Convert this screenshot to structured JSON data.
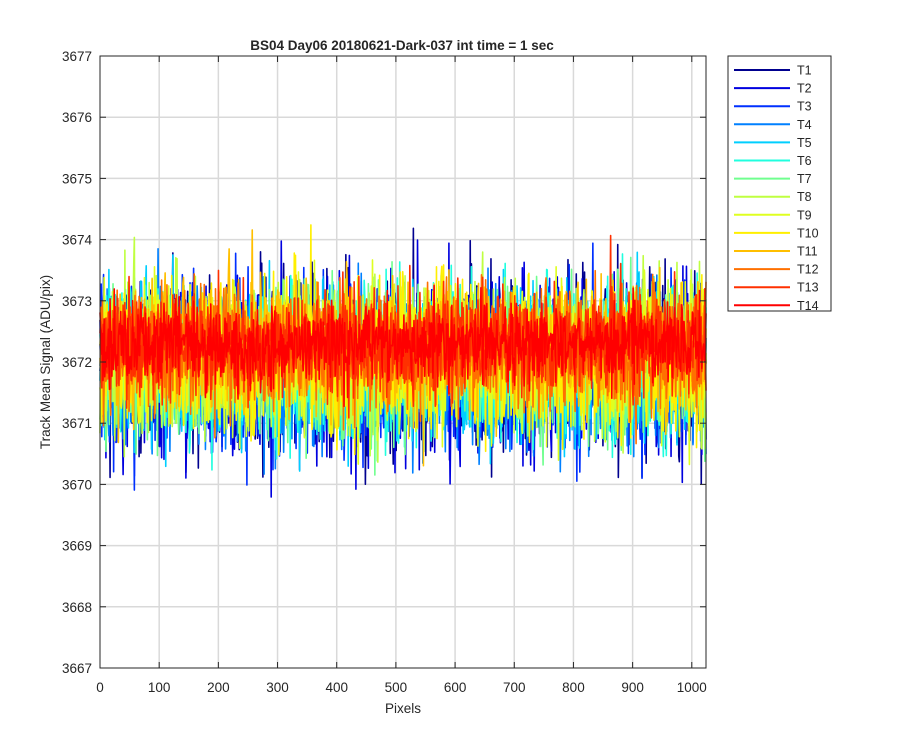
{
  "chart_data": {
    "type": "line",
    "title": "BS04 Day06 20180621-Dark-037 int time = 1 sec",
    "xlabel": "Pixels",
    "ylabel": "Track Mean Signal (ADU/pix)",
    "xlim": [
      0,
      1024
    ],
    "ylim": [
      3667,
      3677
    ],
    "xticks": [
      0,
      100,
      200,
      300,
      400,
      500,
      600,
      700,
      800,
      900,
      1000
    ],
    "yticks": [
      3667,
      3668,
      3669,
      3670,
      3671,
      3672,
      3673,
      3674,
      3675,
      3676,
      3677
    ],
    "grid": true,
    "legend_position": "outside-top-right",
    "n_points_per_series": 1024,
    "series": [
      {
        "name": "T1",
        "color": "#00008f",
        "center": 3671.9,
        "spread": 2.3
      },
      {
        "name": "T2",
        "color": "#0000df",
        "center": 3671.9,
        "spread": 2.2
      },
      {
        "name": "T3",
        "color": "#0030ff",
        "center": 3671.9,
        "spread": 2.1
      },
      {
        "name": "T4",
        "color": "#0080ff",
        "center": 3671.9,
        "spread": 2.1
      },
      {
        "name": "T5",
        "color": "#00cfff",
        "center": 3672.0,
        "spread": 2.0
      },
      {
        "name": "T6",
        "color": "#20ffdf",
        "center": 3672.0,
        "spread": 2.0
      },
      {
        "name": "T7",
        "color": "#70ff8f",
        "center": 3672.0,
        "spread": 1.9
      },
      {
        "name": "T8",
        "color": "#bfff40",
        "center": 3672.1,
        "spread": 1.9
      },
      {
        "name": "T9",
        "color": "#dfff20",
        "center": 3672.1,
        "spread": 1.8
      },
      {
        "name": "T10",
        "color": "#ffef00",
        "center": 3672.1,
        "spread": 1.8
      },
      {
        "name": "T11",
        "color": "#ffbf00",
        "center": 3672.2,
        "spread": 1.7
      },
      {
        "name": "T12",
        "color": "#ff7000",
        "center": 3672.2,
        "spread": 1.6
      },
      {
        "name": "T13",
        "color": "#ff3000",
        "center": 3672.3,
        "spread": 1.3
      },
      {
        "name": "T14",
        "color": "#ff0000",
        "center": 3672.3,
        "spread": 1.0
      }
    ]
  }
}
